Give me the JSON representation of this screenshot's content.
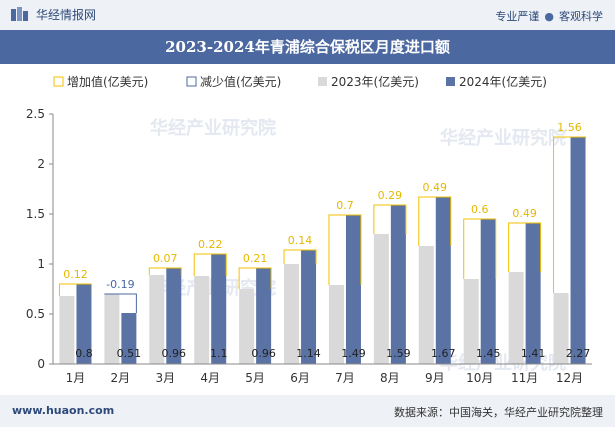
{
  "header": {
    "brand": "华经情报网",
    "tagline_left": "专业严谨",
    "tagline_right": "客观科学",
    "logo_icon": "huajing-logo-icon"
  },
  "footer": {
    "site": "www.huaon.com",
    "source": "数据来源：中国海关，华经产业研究院整理"
  },
  "watermark": "华经产业研究院",
  "chart_data": {
    "type": "bar",
    "title": "2023-2024年青浦综合保税区月度进口额",
    "xlabel": "",
    "ylabel": "",
    "categories": [
      "1月",
      "2月",
      "3月",
      "4月",
      "5月",
      "6月",
      "7月",
      "8月",
      "9月",
      "10月",
      "11月",
      "12月"
    ],
    "ylim": [
      0,
      2.5
    ],
    "yticks": [
      0,
      0.5,
      1,
      1.5,
      2,
      2.5
    ],
    "grid": false,
    "legend_position": "top-left",
    "series": [
      {
        "name": "2023年(亿美元)",
        "color": "#d9d9d9",
        "values": [
          0.68,
          0.7,
          0.89,
          0.88,
          0.75,
          1.0,
          0.79,
          1.3,
          1.18,
          0.85,
          0.92,
          0.71
        ]
      },
      {
        "name": "2024年(亿美元)",
        "color": "#5a73a4",
        "values": [
          0.8,
          0.51,
          0.96,
          1.1,
          0.96,
          1.14,
          1.49,
          1.59,
          1.67,
          1.45,
          1.41,
          2.27
        ]
      }
    ],
    "increase": {
      "name": "增加值(亿美元)",
      "color": "#f2c200",
      "values": [
        0.12,
        null,
        0.07,
        0.22,
        0.21,
        0.14,
        0.7,
        0.29,
        0.49,
        0.6,
        0.49,
        1.56
      ]
    },
    "decrease": {
      "name": "减少值(亿美元)",
      "color": "#4b68a0",
      "values": [
        null,
        -0.19,
        null,
        null,
        null,
        null,
        null,
        null,
        null,
        null,
        null,
        null
      ]
    },
    "change_labels": [
      "0.12",
      "-0.19",
      "0.07",
      "0.22",
      "0.21",
      "0.14",
      "0.7",
      "0.29",
      "0.49",
      "0.6",
      "0.49",
      "1.56"
    ],
    "value_labels": [
      "0.8",
      "0.51",
      "0.96",
      "1.1",
      "0.96",
      "1.14",
      "1.49",
      "1.59",
      "1.67",
      "1.45",
      "1.41",
      "2.27"
    ]
  }
}
